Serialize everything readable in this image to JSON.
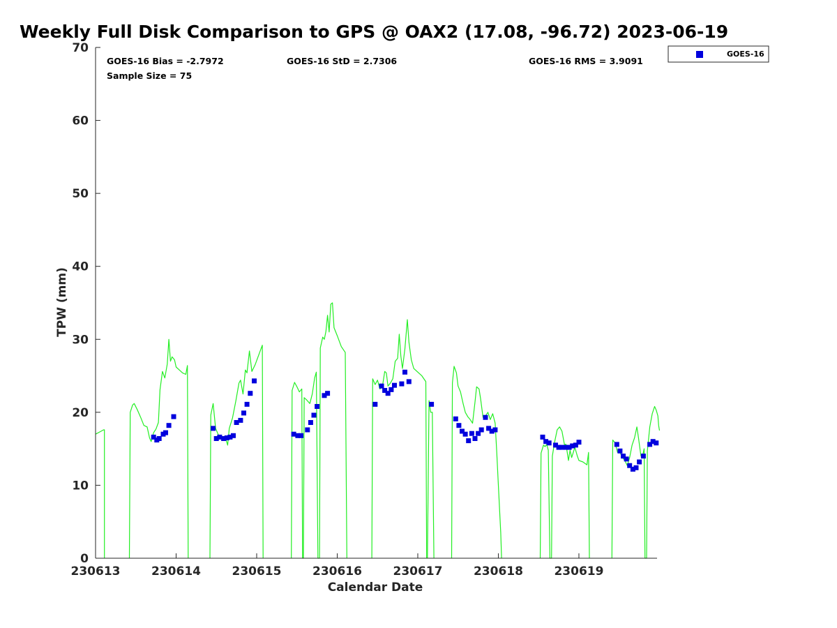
{
  "chart_data": {
    "type": "scatter",
    "title": "Weekly Full Disk Comparison to GPS @ OAX2 (17.08, -96.72) 2023-06-19",
    "xlabel": "Calendar Date",
    "ylabel": "TPW (mm)",
    "xlim": [
      0,
      6.97
    ],
    "ylim": [
      0,
      70
    ],
    "x_tick_labels": [
      "230613",
      "230614",
      "230615",
      "230616",
      "230617",
      "230618",
      "230619"
    ],
    "x_tick_values": [
      0,
      1,
      2,
      3,
      4,
      5,
      6
    ],
    "y_ticks": [
      0,
      10,
      20,
      30,
      40,
      50,
      60,
      70
    ],
    "grid": false,
    "legend_position": "top-right-outside",
    "stats": {
      "bias": "GOES-16 Bias = -2.7972",
      "std": "GOES-16 StD = 2.7306",
      "rms": "GOES-16 RMS = 3.9091",
      "sample": "Sample Size = 75"
    },
    "colors": {
      "goes": "#0000dd",
      "gps": "#22ee22",
      "axis": "#262626"
    },
    "series": [
      {
        "name": "GOES-16",
        "kind": "scatter",
        "points": [
          [
            0.72,
            16.6
          ],
          [
            0.76,
            16.2
          ],
          [
            0.79,
            16.4
          ],
          [
            0.84,
            17.0
          ],
          [
            0.87,
            17.2
          ],
          [
            0.91,
            18.2
          ],
          [
            0.97,
            19.4
          ],
          [
            1.46,
            17.8
          ],
          [
            1.5,
            16.4
          ],
          [
            1.54,
            16.6
          ],
          [
            1.59,
            16.4
          ],
          [
            1.63,
            16.5
          ],
          [
            1.67,
            16.6
          ],
          [
            1.71,
            16.8
          ],
          [
            1.75,
            18.6
          ],
          [
            1.8,
            18.9
          ],
          [
            1.84,
            19.9
          ],
          [
            1.88,
            21.1
          ],
          [
            1.92,
            22.6
          ],
          [
            1.97,
            24.3
          ],
          [
            2.46,
            17.0
          ],
          [
            2.51,
            16.8
          ],
          [
            2.55,
            16.8
          ],
          [
            2.63,
            17.6
          ],
          [
            2.67,
            18.6
          ],
          [
            2.71,
            19.6
          ],
          [
            2.75,
            20.8
          ],
          [
            2.84,
            22.3
          ],
          [
            2.88,
            22.6
          ],
          [
            3.47,
            21.1
          ],
          [
            3.55,
            23.6
          ],
          [
            3.59,
            23.0
          ],
          [
            3.63,
            22.6
          ],
          [
            3.67,
            23.1
          ],
          [
            3.71,
            23.7
          ],
          [
            3.8,
            23.9
          ],
          [
            3.84,
            25.5
          ],
          [
            3.89,
            24.2
          ],
          [
            4.17,
            21.1
          ],
          [
            4.47,
            19.1
          ],
          [
            4.51,
            18.2
          ],
          [
            4.55,
            17.4
          ],
          [
            4.59,
            17.0
          ],
          [
            4.63,
            16.1
          ],
          [
            4.67,
            17.1
          ],
          [
            4.71,
            16.4
          ],
          [
            4.75,
            17.1
          ],
          [
            4.79,
            17.6
          ],
          [
            4.84,
            19.3
          ],
          [
            4.88,
            17.8
          ],
          [
            4.92,
            17.4
          ],
          [
            4.96,
            17.6
          ],
          [
            5.55,
            16.6
          ],
          [
            5.59,
            16.0
          ],
          [
            5.63,
            15.8
          ],
          [
            5.71,
            15.5
          ],
          [
            5.75,
            15.2
          ],
          [
            5.79,
            15.2
          ],
          [
            5.84,
            15.2
          ],
          [
            5.88,
            15.2
          ],
          [
            5.92,
            15.4
          ],
          [
            5.96,
            15.5
          ],
          [
            6.0,
            15.9
          ],
          [
            6.47,
            15.6
          ],
          [
            6.51,
            14.7
          ],
          [
            6.55,
            14.0
          ],
          [
            6.59,
            13.6
          ],
          [
            6.63,
            12.7
          ],
          [
            6.67,
            12.2
          ],
          [
            6.71,
            12.4
          ],
          [
            6.75,
            13.2
          ],
          [
            6.8,
            14.0
          ],
          [
            6.88,
            15.6
          ],
          [
            6.92,
            16.0
          ],
          [
            6.96,
            15.8
          ]
        ]
      },
      {
        "kind": "line",
        "segments": [
          [
            [
              0.0,
              17.0
            ],
            [
              0.05,
              17.3
            ],
            [
              0.1,
              17.6
            ],
            [
              0.11,
              17.6
            ],
            [
              0.11,
              0.0
            ]
          ],
          [
            [
              0.42,
              0.0
            ],
            [
              0.43,
              20.0
            ],
            [
              0.46,
              21.0
            ],
            [
              0.48,
              21.2
            ],
            [
              0.52,
              20.3
            ],
            [
              0.56,
              19.3
            ],
            [
              0.6,
              18.2
            ],
            [
              0.64,
              18.0
            ],
            [
              0.67,
              16.5
            ],
            [
              0.69,
              16.0
            ],
            [
              0.72,
              17.2
            ],
            [
              0.75,
              17.7
            ],
            [
              0.78,
              18.6
            ],
            [
              0.8,
              23.1
            ],
            [
              0.83,
              25.6
            ],
            [
              0.86,
              24.7
            ],
            [
              0.89,
              26.6
            ],
            [
              0.91,
              30.0
            ],
            [
              0.93,
              27.0
            ],
            [
              0.95,
              27.6
            ],
            [
              0.98,
              27.2
            ],
            [
              1.0,
              26.2
            ],
            [
              1.04,
              25.8
            ],
            [
              1.08,
              25.4
            ],
            [
              1.12,
              25.2
            ],
            [
              1.14,
              26.4
            ],
            [
              1.15,
              0.0
            ]
          ],
          [
            [
              1.42,
              0.0
            ],
            [
              1.43,
              19.6
            ],
            [
              1.46,
              21.2
            ],
            [
              1.49,
              17.8
            ],
            [
              1.52,
              17.0
            ],
            [
              1.55,
              16.4
            ],
            [
              1.58,
              16.3
            ],
            [
              1.61,
              16.6
            ],
            [
              1.64,
              15.5
            ],
            [
              1.66,
              17.8
            ],
            [
              1.7,
              19.2
            ],
            [
              1.74,
              21.5
            ],
            [
              1.78,
              24.0
            ],
            [
              1.8,
              24.4
            ],
            [
              1.83,
              22.5
            ],
            [
              1.86,
              25.8
            ],
            [
              1.88,
              25.4
            ],
            [
              1.91,
              28.4
            ],
            [
              1.94,
              25.6
            ],
            [
              1.98,
              26.5
            ],
            [
              2.03,
              28.0
            ],
            [
              2.07,
              29.2
            ],
            [
              2.08,
              0.0
            ]
          ],
          [
            [
              2.43,
              0.0
            ],
            [
              2.44,
              23.0
            ],
            [
              2.47,
              24.1
            ],
            [
              2.5,
              23.5
            ],
            [
              2.53,
              22.8
            ],
            [
              2.56,
              23.2
            ],
            [
              2.57,
              0.0
            ],
            [
              2.58,
              0.0
            ],
            [
              2.59,
              22.0
            ],
            [
              2.62,
              21.7
            ],
            [
              2.66,
              21.2
            ],
            [
              2.69,
              22.5
            ],
            [
              2.72,
              24.7
            ],
            [
              2.74,
              25.5
            ],
            [
              2.76,
              0.0
            ],
            [
              2.78,
              0.0
            ],
            [
              2.79,
              28.8
            ],
            [
              2.82,
              30.3
            ],
            [
              2.84,
              30.0
            ],
            [
              2.86,
              31.1
            ],
            [
              2.88,
              33.3
            ],
            [
              2.9,
              31.0
            ],
            [
              2.92,
              34.8
            ],
            [
              2.94,
              35.0
            ],
            [
              2.96,
              31.6
            ],
            [
              3.0,
              30.5
            ],
            [
              3.05,
              29.0
            ],
            [
              3.1,
              28.2
            ],
            [
              3.12,
              0.0
            ]
          ],
          [
            [
              3.43,
              0.0
            ],
            [
              3.44,
              24.6
            ],
            [
              3.47,
              23.8
            ],
            [
              3.5,
              24.4
            ],
            [
              3.53,
              23.2
            ],
            [
              3.56,
              23.5
            ],
            [
              3.59,
              25.6
            ],
            [
              3.61,
              25.4
            ],
            [
              3.63,
              23.6
            ],
            [
              3.66,
              24.0
            ],
            [
              3.69,
              24.6
            ],
            [
              3.72,
              27.0
            ],
            [
              3.75,
              27.4
            ],
            [
              3.77,
              30.7
            ],
            [
              3.79,
              27.7
            ],
            [
              3.81,
              26.0
            ],
            [
              3.84,
              28.7
            ],
            [
              3.87,
              32.7
            ],
            [
              3.89,
              29.6
            ],
            [
              3.92,
              27.2
            ],
            [
              3.95,
              26.0
            ],
            [
              4.0,
              25.5
            ],
            [
              4.05,
              25.0
            ],
            [
              4.1,
              24.2
            ],
            [
              4.11,
              0.0
            ]
          ],
          [
            [
              4.12,
              0.0
            ],
            [
              4.14,
              21.6
            ],
            [
              4.16,
              20.0
            ],
            [
              4.18,
              20.0
            ],
            [
              4.2,
              0.0
            ]
          ],
          [
            [
              4.42,
              0.0
            ],
            [
              4.43,
              24.0
            ],
            [
              4.45,
              26.3
            ],
            [
              4.48,
              25.4
            ],
            [
              4.5,
              23.6
            ],
            [
              4.53,
              22.8
            ],
            [
              4.56,
              21.3
            ],
            [
              4.59,
              20.0
            ],
            [
              4.62,
              19.4
            ],
            [
              4.65,
              19.0
            ],
            [
              4.68,
              18.5
            ],
            [
              4.71,
              21.4
            ],
            [
              4.73,
              23.5
            ],
            [
              4.76,
              23.2
            ],
            [
              4.78,
              21.8
            ],
            [
              4.81,
              19.3
            ],
            [
              4.84,
              19.5
            ],
            [
              4.87,
              20.0
            ],
            [
              4.9,
              19.0
            ],
            [
              4.93,
              19.8
            ],
            [
              4.96,
              18.5
            ],
            [
              4.98,
              14.5
            ],
            [
              5.0,
              10.0
            ],
            [
              5.03,
              3.5
            ],
            [
              5.04,
              0.0
            ]
          ],
          [
            [
              5.52,
              0.0
            ],
            [
              5.53,
              14.4
            ],
            [
              5.56,
              15.5
            ],
            [
              5.58,
              15.3
            ],
            [
              5.6,
              15.6
            ],
            [
              5.62,
              14.8
            ],
            [
              5.64,
              0.0
            ],
            [
              5.66,
              0.0
            ],
            [
              5.67,
              14.0
            ],
            [
              5.7,
              16.0
            ],
            [
              5.73,
              17.6
            ],
            [
              5.76,
              18.0
            ],
            [
              5.79,
              17.4
            ],
            [
              5.82,
              15.6
            ],
            [
              5.84,
              15.6
            ],
            [
              5.87,
              13.4
            ],
            [
              5.89,
              14.8
            ],
            [
              5.91,
              13.8
            ],
            [
              5.93,
              14.5
            ],
            [
              5.95,
              15.2
            ],
            [
              5.98,
              14.0
            ],
            [
              6.0,
              13.4
            ],
            [
              6.05,
              13.2
            ],
            [
              6.1,
              12.8
            ],
            [
              6.12,
              14.5
            ],
            [
              6.13,
              0.0
            ]
          ],
          [
            [
              6.41,
              0.0
            ],
            [
              6.42,
              16.2
            ],
            [
              6.45,
              15.8
            ],
            [
              6.48,
              14.5
            ],
            [
              6.51,
              14.5
            ],
            [
              6.54,
              13.8
            ],
            [
              6.57,
              13.4
            ],
            [
              6.6,
              12.7
            ],
            [
              6.63,
              13.8
            ],
            [
              6.66,
              15.5
            ],
            [
              6.69,
              16.5
            ],
            [
              6.72,
              18.0
            ],
            [
              6.74,
              16.5
            ],
            [
              6.77,
              14.0
            ],
            [
              6.79,
              14.0
            ],
            [
              6.81,
              15.0
            ],
            [
              6.82,
              0.0
            ],
            [
              6.84,
              0.0
            ],
            [
              6.85,
              14.7
            ],
            [
              6.88,
              18.0
            ],
            [
              6.91,
              19.8
            ],
            [
              6.94,
              20.8
            ],
            [
              6.96,
              20.3
            ],
            [
              6.98,
              19.5
            ],
            [
              6.99,
              18.2
            ],
            [
              7.0,
              17.5
            ]
          ]
        ]
      }
    ]
  }
}
